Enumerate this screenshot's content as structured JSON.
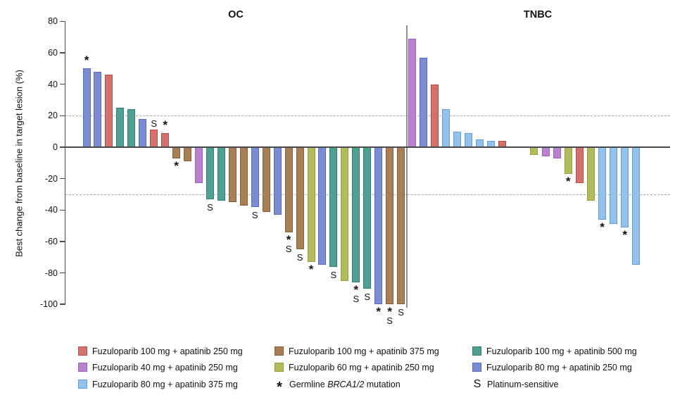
{
  "chart_data": {
    "type": "bar",
    "subtype": "waterfall",
    "title": "",
    "ylabel": "Best change from baseline in target lesion (%)",
    "xlabel": "",
    "ylim": [
      -100,
      80
    ],
    "yticks": [
      80,
      60,
      40,
      20,
      0,
      -20,
      -40,
      -60,
      -80,
      -100
    ],
    "reference_lines": [
      20,
      -30
    ],
    "grid": false,
    "legend_position": "bottom",
    "flag_meanings": {
      "*": "Germline BRCA1/2 mutation",
      "S": "Platinum-sensitive"
    },
    "groups": [
      {
        "label": "OC",
        "bars": [
          [
            50,
            "blue",
            "*"
          ],
          [
            48,
            "blue",
            ""
          ],
          [
            46,
            "red",
            ""
          ],
          [
            25,
            "teal",
            ""
          ],
          [
            24,
            "teal",
            ""
          ],
          [
            18,
            "blue",
            ""
          ],
          [
            11,
            "red",
            "S"
          ],
          [
            9,
            "red",
            "*"
          ],
          [
            -7,
            "brown",
            "*"
          ],
          [
            -9,
            "brown",
            ""
          ],
          [
            -23,
            "orchid",
            ""
          ],
          [
            -33,
            "teal",
            "S"
          ],
          [
            -34,
            "teal",
            ""
          ],
          [
            -35,
            "brown",
            ""
          ],
          [
            -37,
            "brown",
            ""
          ],
          [
            -38,
            "blue",
            "S"
          ],
          [
            -41,
            "brown",
            ""
          ],
          [
            -43,
            "blue",
            ""
          ],
          [
            -54,
            "brown",
            "*S"
          ],
          [
            -65,
            "brown",
            "S"
          ],
          [
            -73,
            "olive",
            "*"
          ],
          [
            -75,
            "blue",
            ""
          ],
          [
            -76,
            "teal",
            "S"
          ],
          [
            -85,
            "olive",
            ""
          ],
          [
            -86,
            "teal",
            "*S"
          ],
          [
            -90,
            "teal",
            "S"
          ],
          [
            -100,
            "blue",
            "*"
          ],
          [
            -100,
            "brown",
            "*S"
          ],
          [
            -100,
            "brown",
            "S"
          ]
        ]
      },
      {
        "label": "TNBC",
        "bars": [
          [
            69,
            "orchid",
            ""
          ],
          [
            57,
            "blue",
            ""
          ],
          [
            40,
            "red",
            ""
          ],
          [
            24,
            "lightblue",
            ""
          ],
          [
            10,
            "lightblue",
            ""
          ],
          [
            9,
            "lightblue",
            ""
          ],
          [
            5,
            "lightblue",
            ""
          ],
          [
            4,
            "lightblue",
            ""
          ],
          [
            4,
            "red",
            ""
          ],
          [
            -5,
            "olive",
            ""
          ],
          [
            -6,
            "orchid",
            ""
          ],
          [
            -7,
            "orchid",
            ""
          ],
          [
            -17,
            "olive",
            "*"
          ],
          [
            -23,
            "red",
            ""
          ],
          [
            -34,
            "olive",
            ""
          ],
          [
            -46,
            "lightblue",
            "*"
          ],
          [
            -49,
            "lightblue",
            ""
          ],
          [
            -51,
            "lightblue",
            "*"
          ],
          [
            -75,
            "lightblue",
            ""
          ]
        ]
      }
    ],
    "legend": [
      {
        "swatch": "red",
        "label": "Fuzuloparib 100 mg + apatinib 250 mg"
      },
      {
        "swatch": "brown",
        "label": "Fuzuloparib 100 mg + apatinib 375 mg"
      },
      {
        "swatch": "teal",
        "label": "Fuzuloparib 100 mg + apatinib 500 mg"
      },
      {
        "swatch": "orchid",
        "label": "Fuzuloparib 40 mg + apatinib 250 mg"
      },
      {
        "swatch": "olive",
        "label": "Fuzuloparib 60 mg + apatinib 250 mg"
      },
      {
        "swatch": "blue",
        "label": "Fuzuloparib 80 mg + apatinib 250 mg"
      },
      {
        "swatch": "lightblue",
        "label": "Fuzuloparib 80 mg + apatinib 375 mg"
      },
      {
        "glyph": "*",
        "parts": [
          "Germline ",
          "BRCA1/2",
          " mutation"
        ]
      },
      {
        "glyph": "S",
        "label": "Platinum-sensitive"
      }
    ]
  },
  "colors": {
    "red": {
      "fill": "#D3716C",
      "border": "#BE4B45"
    },
    "brown": {
      "fill": "#A87F55",
      "border": "#85613A"
    },
    "teal": {
      "fill": "#4EA093",
      "border": "#2F8173"
    },
    "orchid": {
      "fill": "#B983CC",
      "border": "#A05BC5"
    },
    "olive": {
      "fill": "#B5BA5C",
      "border": "#98A233"
    },
    "blue": {
      "fill": "#7A8DD0",
      "border": "#5869C9"
    },
    "lightblue": {
      "fill": "#94C2EA",
      "border": "#5EA0DC"
    },
    "axis": "#4a4a4a",
    "dashed_reference": "#aaaaaa",
    "panel_divider": "#8f8f8f"
  }
}
